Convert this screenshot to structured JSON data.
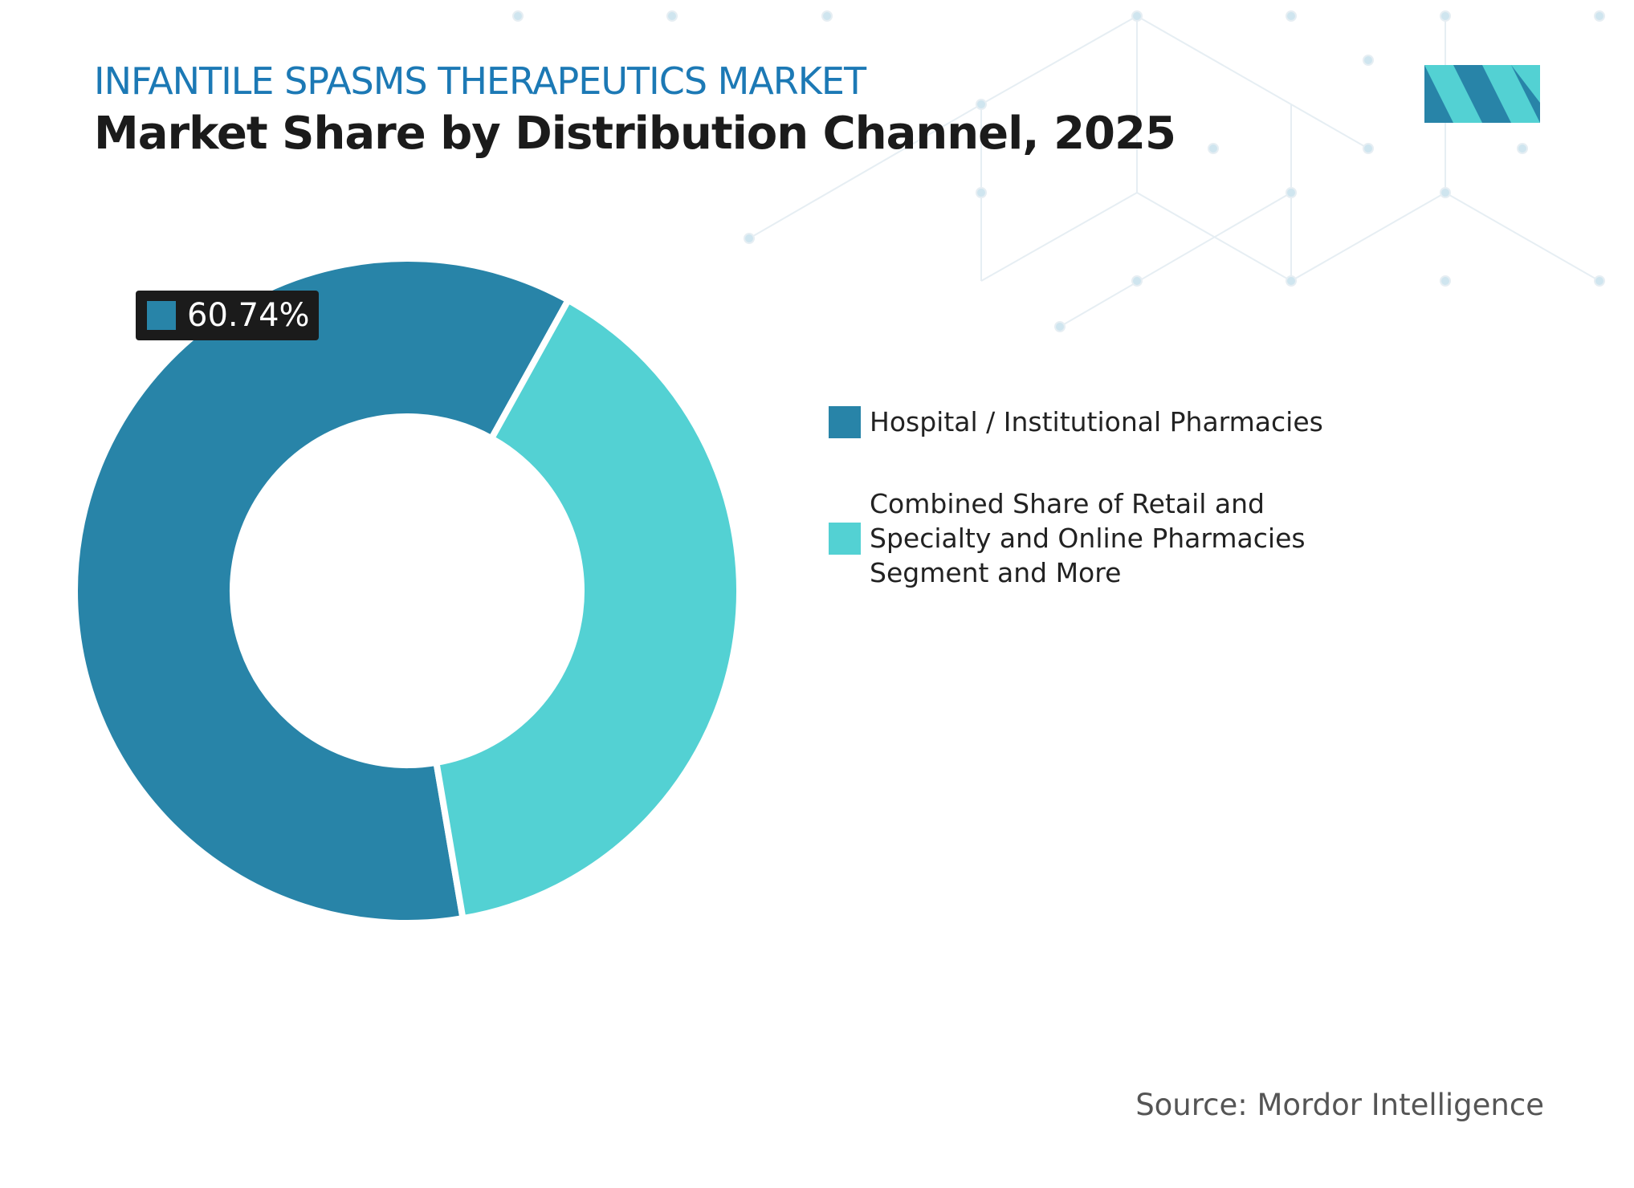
{
  "chart_data": {
    "type": "donut",
    "title": "INFANTILE SPASMS THERAPEUTICS MARKET",
    "subtitle": "Market Share by Distribution Channel, 2025",
    "categories": [
      "Hospital / Institutional Pharmacies",
      "Combined Share of Retail and Specialty and Online Pharmacies Segment and More"
    ],
    "values": [
      60.74,
      39.26
    ],
    "value_labels": [
      "60.74%",
      null
    ],
    "colors": [
      "#2884a8",
      "#53d1d3"
    ],
    "source": "Source: Mordor Intelligence"
  }
}
